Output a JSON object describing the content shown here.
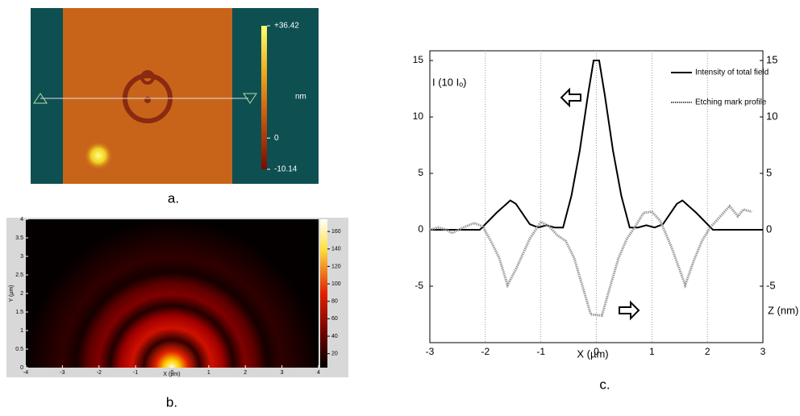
{
  "chart_data": [
    {
      "type": "image",
      "caption": "a.",
      "colorbar_label": "nm",
      "clim": [
        -10.14,
        36.42
      ],
      "colorbar_ticks": [
        {
          "value": 36.42,
          "label": "+36.42"
        },
        0,
        -10.14
      ]
    },
    {
      "type": "heatmap",
      "caption": "b.",
      "xlabel": "X (µm)",
      "ylabel": "Y (µm)",
      "xlim": [
        -4,
        4
      ],
      "xticks": [
        -4,
        -3,
        -2,
        -1,
        0,
        1,
        2,
        3,
        4
      ],
      "ylim": [
        0,
        4
      ],
      "yticks": [
        0,
        0.5,
        1,
        1.5,
        2,
        2.5,
        3,
        3.5,
        4
      ],
      "clim": [
        4,
        174
      ],
      "colorbar_ticks": [
        20,
        40,
        60,
        80,
        100,
        120,
        140,
        160
      ]
    },
    {
      "type": "line",
      "caption": "c.",
      "xlabel": "X (µm)",
      "ylabel": "I (10 Iₒ)",
      "y2label": "Z (nm)",
      "xlim": [
        -3,
        3
      ],
      "xticks": [
        -3,
        -2,
        -1,
        0,
        1,
        2,
        3
      ],
      "ylim": [
        -10,
        15.86
      ],
      "yticks": [
        15,
        10,
        5,
        0,
        -5
      ],
      "y2lim": [
        -10,
        15.86
      ],
      "y2ticks": [
        15,
        10,
        5,
        0,
        -5
      ],
      "grid": true,
      "legend": "upper right",
      "series": [
        {
          "name": "Intensity of total field",
          "color": "#000000",
          "style": "solid",
          "x": [
            -3,
            -2.1,
            -1.8,
            -1.55,
            -1.45,
            -1.2,
            -1.05,
            -0.9,
            -0.75,
            -0.6,
            -0.45,
            -0.3,
            -0.15,
            -0.05,
            0.05,
            0.15,
            0.3,
            0.45,
            0.6,
            0.75,
            0.9,
            1.05,
            1.2,
            1.45,
            1.55,
            1.8,
            2.1,
            3
          ],
          "values": [
            0,
            0,
            1.5,
            2.6,
            2.3,
            0.5,
            0.2,
            0.4,
            0.2,
            0.2,
            3,
            7,
            12,
            15,
            15,
            12,
            7,
            3,
            0.2,
            0.2,
            0.4,
            0.2,
            0.5,
            2.3,
            2.6,
            1.5,
            0,
            0
          ]
        },
        {
          "name": "Etching mark profile",
          "color": "#999999",
          "style": "dotted",
          "axis": "y2",
          "x": [
            -3,
            -2.85,
            -2.7,
            -2.6,
            -2.4,
            -2.2,
            -2.05,
            -1.9,
            -1.75,
            -1.6,
            -1.45,
            -1.2,
            -1.0,
            -0.85,
            -0.7,
            -0.55,
            -0.4,
            -0.25,
            -0.1,
            0.1,
            0.25,
            0.4,
            0.55,
            0.7,
            0.85,
            1.0,
            1.15,
            1.35,
            1.6,
            1.75,
            1.9,
            2.05,
            2.2,
            2.4,
            2.55,
            2.65,
            2.8
          ],
          "values": [
            0,
            0.2,
            0,
            -0.3,
            0.2,
            0.6,
            0.3,
            -1,
            -2.5,
            -4.9,
            -3.5,
            -0.8,
            0.7,
            0.3,
            -0.5,
            -1,
            -2.5,
            -5,
            -7.5,
            -7.6,
            -5,
            -2.5,
            -0.8,
            0.3,
            1.5,
            1.6,
            0.8,
            -1.5,
            -4.9,
            -2.8,
            -1,
            0.2,
            1,
            2.1,
            1.2,
            1.8,
            1.6
          ]
        }
      ]
    }
  ]
}
